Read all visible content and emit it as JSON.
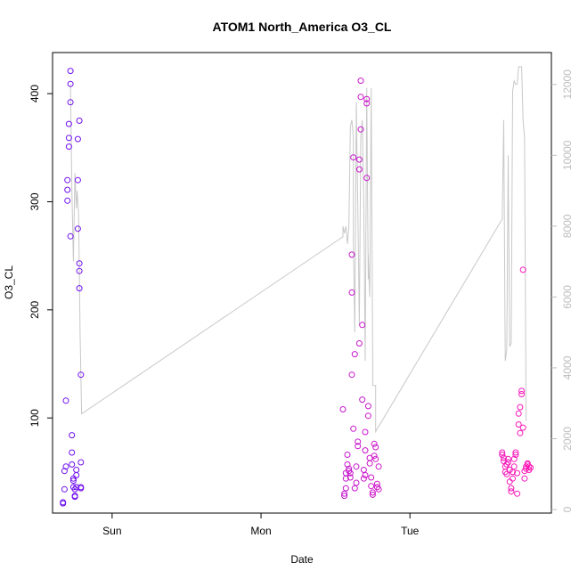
{
  "chart_data": {
    "type": "scatter",
    "title": "ATOM1 North_America O3_CL",
    "xlabel": "Date",
    "ylabel": "O3_CL",
    "x_ticks": [
      "Sun",
      "Mon",
      "Tue"
    ],
    "x_range_days": [
      -0.4,
      2.95
    ],
    "ylim": [
      12,
      438
    ],
    "y_ticks": [
      100,
      200,
      300,
      400
    ],
    "y2_ticks": [
      0,
      2000,
      4000,
      6000,
      8000,
      10000,
      12000
    ],
    "y2lim": [
      -100,
      12900
    ],
    "colors": {
      "line": "#c8c8c8",
      "right_axis": "#bdbdbd",
      "point_start": "#6a11f2",
      "point_end": "#ff17b5"
    },
    "points": [
      [
        -0.33,
        21
      ],
      [
        -0.33,
        22
      ],
      [
        -0.32,
        34
      ],
      [
        -0.32,
        51
      ],
      [
        -0.31,
        55
      ],
      [
        -0.31,
        116
      ],
      [
        -0.3,
        301
      ],
      [
        -0.3,
        311
      ],
      [
        -0.3,
        320
      ],
      [
        -0.29,
        351
      ],
      [
        -0.29,
        359
      ],
      [
        -0.29,
        372
      ],
      [
        -0.28,
        392
      ],
      [
        -0.28,
        409
      ],
      [
        -0.28,
        421
      ],
      [
        -0.28,
        268
      ],
      [
        -0.27,
        84
      ],
      [
        -0.27,
        68
      ],
      [
        -0.27,
        57
      ],
      [
        -0.26,
        42
      ],
      [
        -0.26,
        44
      ],
      [
        -0.26,
        36
      ],
      [
        -0.25,
        34
      ],
      [
        -0.25,
        27
      ],
      [
        -0.25,
        28
      ],
      [
        -0.24,
        36
      ],
      [
        -0.24,
        47
      ],
      [
        -0.24,
        52
      ],
      [
        -0.23,
        275
      ],
      [
        -0.23,
        320
      ],
      [
        -0.23,
        358
      ],
      [
        -0.22,
        375
      ],
      [
        -0.22,
        243
      ],
      [
        -0.22,
        236
      ],
      [
        -0.22,
        220
      ],
      [
        -0.21,
        140
      ],
      [
        -0.21,
        59
      ],
      [
        -0.21,
        36
      ],
      [
        -0.21,
        35
      ],
      [
        1.55,
        108
      ],
      [
        1.56,
        28
      ],
      [
        1.56,
        30
      ],
      [
        1.57,
        35
      ],
      [
        1.57,
        44
      ],
      [
        1.57,
        49
      ],
      [
        1.58,
        57
      ],
      [
        1.58,
        66
      ],
      [
        1.59,
        51
      ],
      [
        1.59,
        53
      ],
      [
        1.6,
        49
      ],
      [
        1.6,
        45
      ],
      [
        1.61,
        216
      ],
      [
        1.61,
        251
      ],
      [
        1.62,
        341
      ],
      [
        1.61,
        140
      ],
      [
        1.62,
        90
      ],
      [
        1.63,
        159
      ],
      [
        1.63,
        35
      ],
      [
        1.64,
        40
      ],
      [
        1.64,
        55
      ],
      [
        1.65,
        74
      ],
      [
        1.65,
        78
      ],
      [
        1.66,
        169
      ],
      [
        1.66,
        330
      ],
      [
        1.66,
        339
      ],
      [
        1.67,
        367
      ],
      [
        1.67,
        397
      ],
      [
        1.67,
        412
      ],
      [
        1.68,
        186
      ],
      [
        1.68,
        117
      ],
      [
        1.69,
        52
      ],
      [
        1.69,
        44
      ],
      [
        1.7,
        47
      ],
      [
        1.7,
        87
      ],
      [
        1.7,
        70
      ],
      [
        1.71,
        322
      ],
      [
        1.71,
        391
      ],
      [
        1.71,
        395
      ],
      [
        1.72,
        111
      ],
      [
        1.72,
        102
      ],
      [
        1.73,
        63
      ],
      [
        1.73,
        58
      ],
      [
        1.74,
        45
      ],
      [
        1.74,
        37
      ],
      [
        1.75,
        29
      ],
      [
        1.75,
        31
      ],
      [
        1.76,
        65
      ],
      [
        1.76,
        76
      ],
      [
        1.77,
        73
      ],
      [
        1.77,
        62
      ],
      [
        1.78,
        39
      ],
      [
        1.78,
        36
      ],
      [
        1.79,
        55
      ],
      [
        1.79,
        34
      ],
      [
        2.62,
        68
      ],
      [
        2.62,
        66
      ],
      [
        2.63,
        63
      ],
      [
        2.63,
        60
      ],
      [
        2.64,
        55
      ],
      [
        2.64,
        50
      ],
      [
        2.65,
        48
      ],
      [
        2.65,
        57
      ],
      [
        2.66,
        62
      ],
      [
        2.66,
        59
      ],
      [
        2.67,
        52
      ],
      [
        2.67,
        41
      ],
      [
        2.68,
        32
      ],
      [
        2.68,
        35
      ],
      [
        2.69,
        44
      ],
      [
        2.69,
        50
      ],
      [
        2.7,
        55
      ],
      [
        2.7,
        62
      ],
      [
        2.71,
        68
      ],
      [
        2.71,
        66
      ],
      [
        2.72,
        49
      ],
      [
        2.72,
        30
      ],
      [
        2.73,
        94
      ],
      [
        2.73,
        104
      ],
      [
        2.74,
        86
      ],
      [
        2.74,
        110
      ],
      [
        2.75,
        125
      ],
      [
        2.75,
        122
      ],
      [
        2.76,
        237
      ],
      [
        2.76,
        91
      ],
      [
        2.77,
        44
      ],
      [
        2.77,
        51
      ],
      [
        2.78,
        55
      ],
      [
        2.78,
        53
      ],
      [
        2.79,
        57
      ],
      [
        2.79,
        58
      ],
      [
        2.8,
        52
      ],
      [
        2.8,
        55
      ],
      [
        2.81,
        54
      ]
    ],
    "line_series": [
      [
        -0.28,
        12000
      ],
      [
        -0.27,
        9000
      ],
      [
        -0.26,
        7000
      ],
      [
        -0.25,
        9500
      ],
      [
        -0.24,
        8500
      ],
      [
        -0.235,
        9000
      ],
      [
        -0.225,
        8300
      ],
      [
        -0.215,
        5000
      ],
      [
        -0.205,
        2700
      ],
      [
        1.55,
        7700
      ],
      [
        1.55,
        8000
      ],
      [
        1.56,
        7800
      ],
      [
        1.57,
        8000
      ],
      [
        1.58,
        7500
      ],
      [
        1.59,
        8000
      ],
      [
        1.6,
        10800
      ],
      [
        1.61,
        11000
      ],
      [
        1.62,
        10500
      ],
      [
        1.62,
        7600
      ],
      [
        1.63,
        5000
      ],
      [
        1.64,
        11500
      ],
      [
        1.65,
        8500
      ],
      [
        1.66,
        5200
      ],
      [
        1.67,
        10500
      ],
      [
        1.68,
        11000
      ],
      [
        1.69,
        8500
      ],
      [
        1.7,
        4200
      ],
      [
        1.71,
        11900
      ],
      [
        1.72,
        6500
      ],
      [
        1.72,
        7200
      ],
      [
        1.73,
        6000
      ],
      [
        1.74,
        11900
      ],
      [
        1.75,
        4200
      ],
      [
        1.75,
        3500
      ],
      [
        1.76,
        3500
      ],
      [
        1.77,
        3500
      ],
      [
        1.77,
        2200
      ],
      [
        2.62,
        8200
      ],
      [
        2.63,
        11000
      ],
      [
        2.64,
        4200
      ],
      [
        2.65,
        4500
      ],
      [
        2.66,
        10000
      ],
      [
        2.67,
        4600
      ],
      [
        2.68,
        4700
      ],
      [
        2.69,
        11800
      ],
      [
        2.7,
        12100
      ],
      [
        2.71,
        12000
      ],
      [
        2.72,
        12000
      ],
      [
        2.73,
        12500
      ],
      [
        2.74,
        12500
      ],
      [
        2.75,
        12500
      ],
      [
        2.76,
        11000
      ],
      [
        2.77,
        10500
      ],
      [
        2.78,
        2500
      ]
    ]
  }
}
